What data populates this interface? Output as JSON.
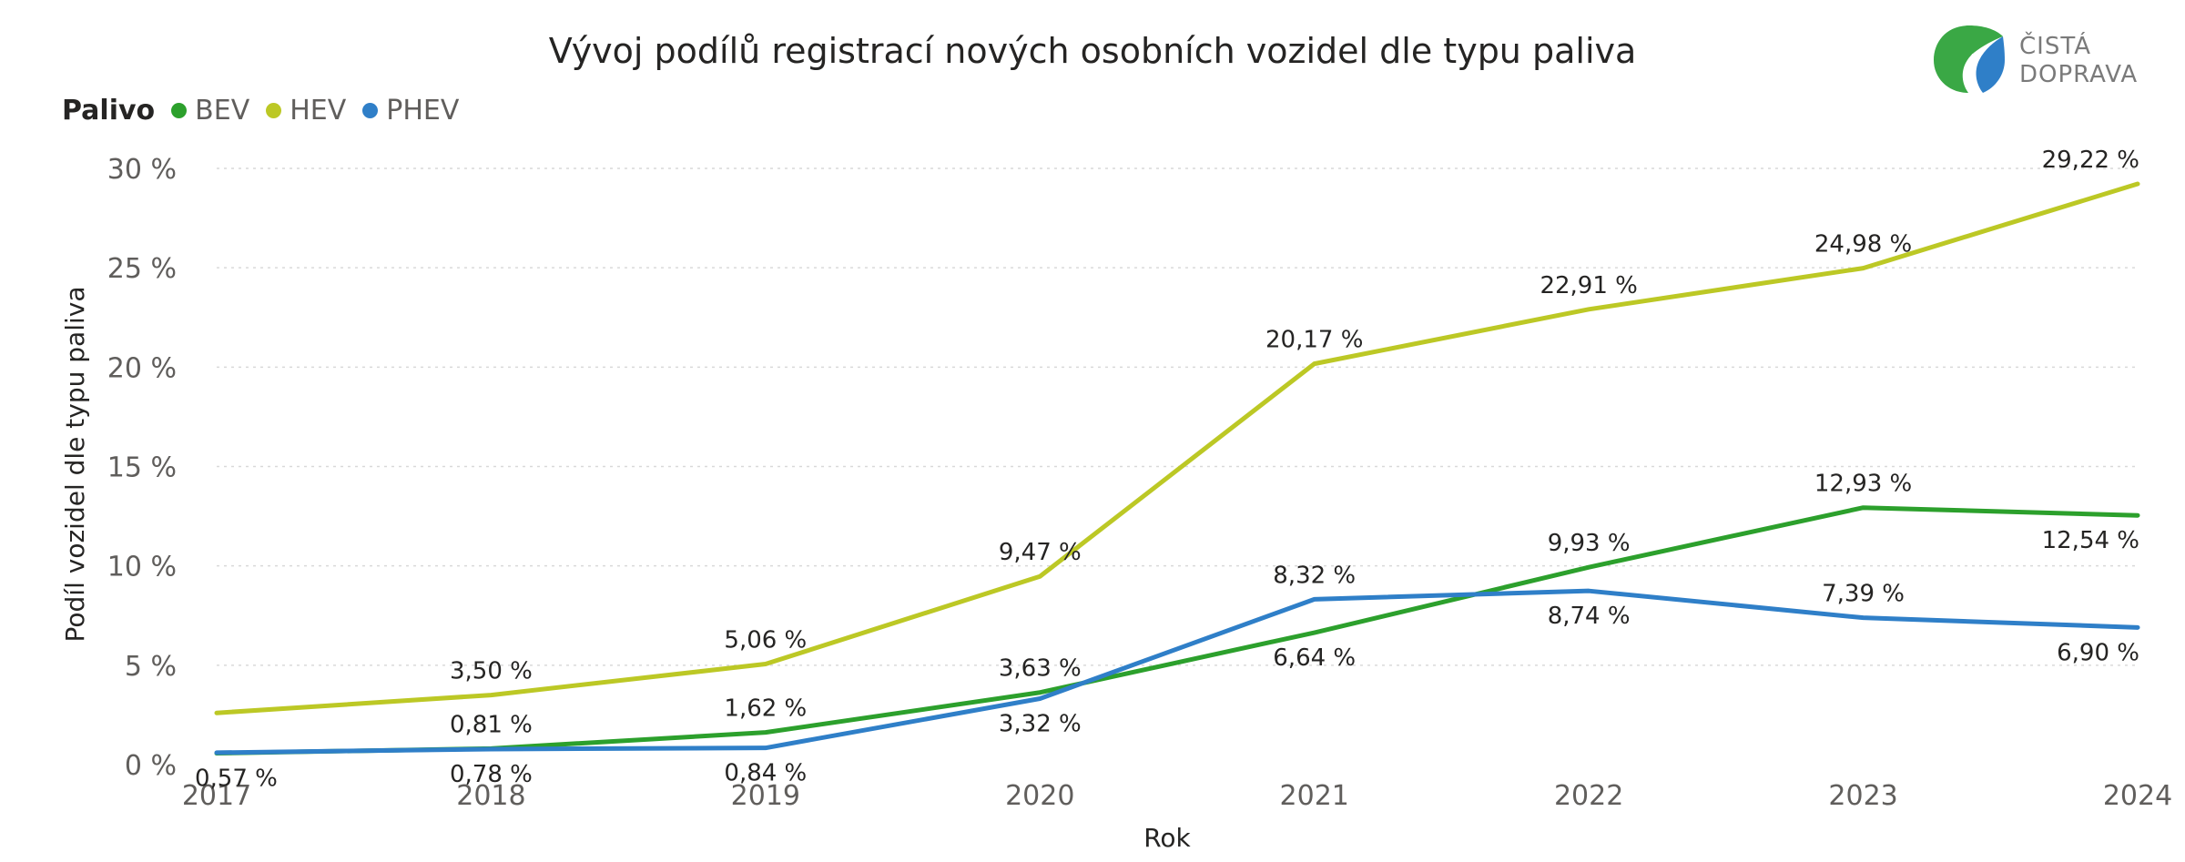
{
  "chart_data": {
    "type": "line",
    "title": "Vývoj podílů registrací nových osobních vozidel dle typu paliva",
    "xlabel": "Rok",
    "ylabel": "Podíl vozidel dle typu paliva",
    "legend_title": "Palivo",
    "legend_position": "top-left",
    "grid": true,
    "x": [
      "2017",
      "2018",
      "2019",
      "2020",
      "2021",
      "2022",
      "2023",
      "2024"
    ],
    "ylim": [
      0,
      30
    ],
    "y_ticks": [
      {
        "value": 0,
        "label": "0 %"
      },
      {
        "value": 5,
        "label": "5 %"
      },
      {
        "value": 10,
        "label": "10 %"
      },
      {
        "value": 15,
        "label": "15 %"
      },
      {
        "value": 20,
        "label": "20 %"
      },
      {
        "value": 25,
        "label": "25 %"
      },
      {
        "value": 30,
        "label": "30 %"
      }
    ],
    "series": [
      {
        "name": "BEV",
        "color": "#2ca02c",
        "values": [
          0.57,
          0.81,
          1.62,
          3.63,
          6.64,
          9.93,
          12.93,
          12.54
        ],
        "labels": [
          "0,57 %",
          "0,81 %",
          "1,62 %",
          "3,63 %",
          "6,64 %",
          "9,93 %",
          "12,93 %",
          "12,54 %"
        ],
        "label_shown": [
          true,
          true,
          true,
          true,
          true,
          true,
          true,
          true
        ],
        "label_side": [
          "below",
          "above",
          "above",
          "above",
          "below",
          "above",
          "above",
          "below"
        ]
      },
      {
        "name": "HEV",
        "color": "#bcc825",
        "values": [
          2.6,
          3.5,
          5.06,
          9.47,
          20.17,
          22.91,
          24.98,
          29.22
        ],
        "labels": [
          "",
          "3,50 %",
          "5,06 %",
          "9,47 %",
          "20,17 %",
          "22,91 %",
          "24,98 %",
          "29,22 %"
        ],
        "label_shown": [
          false,
          true,
          true,
          true,
          true,
          true,
          true,
          true
        ],
        "label_side": [
          "above",
          "above",
          "above",
          "above",
          "above",
          "above",
          "above",
          "above"
        ]
      },
      {
        "name": "PHEV",
        "color": "#2f7fc8",
        "values": [
          0.6,
          0.78,
          0.84,
          3.32,
          8.32,
          8.74,
          7.39,
          6.9
        ],
        "labels": [
          "",
          "0,78 %",
          "0,84 %",
          "3,32 %",
          "8,32 %",
          "8,74 %",
          "7,39 %",
          "6,90 %"
        ],
        "label_shown": [
          false,
          true,
          true,
          true,
          true,
          true,
          true,
          true
        ],
        "label_side": [
          "below",
          "below",
          "below",
          "below",
          "above",
          "below",
          "above",
          "below"
        ]
      }
    ]
  },
  "brand": {
    "line1": "ČISTÁ",
    "line2": "DOPRAVA",
    "logo_icon": "road-leaf-logo-icon"
  }
}
